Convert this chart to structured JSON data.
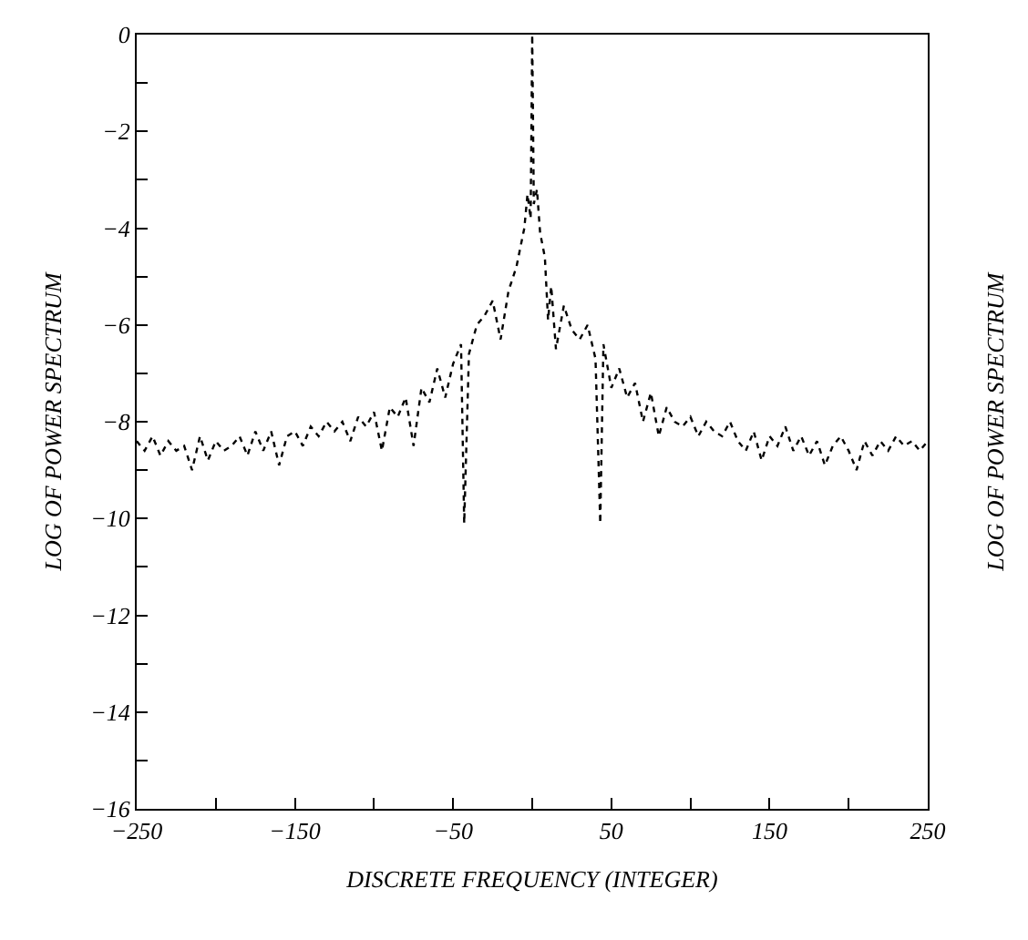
{
  "chart_data": {
    "type": "line",
    "xlabel": "DISCRETE FREQUENCY (INTEGER)",
    "ylabel": "LOG OF POWER SPECTRUM",
    "annotations": [
      "LOG OF POWER SPECTRUM"
    ],
    "x": [
      -250,
      -245,
      -240,
      -235,
      -230,
      -225,
      -220,
      -215,
      -210,
      -205,
      -200,
      -195,
      -190,
      -185,
      -180,
      -175,
      -170,
      -165,
      -160,
      -155,
      -150,
      -145,
      -140,
      -135,
      -130,
      -125,
      -120,
      -115,
      -110,
      -105,
      -100,
      -95,
      -90,
      -85,
      -80,
      -75,
      -70,
      -65,
      -60,
      -55,
      -50,
      -45,
      -43,
      -40,
      -35,
      -30,
      -25,
      -20,
      -15,
      -10,
      -5,
      -3,
      -1,
      0,
      1,
      3,
      5,
      8,
      10,
      12,
      15,
      20,
      25,
      30,
      35,
      40,
      43,
      45,
      50,
      55,
      60,
      65,
      70,
      75,
      80,
      85,
      90,
      95,
      100,
      105,
      110,
      115,
      120,
      125,
      130,
      135,
      140,
      145,
      150,
      155,
      160,
      165,
      170,
      175,
      180,
      185,
      190,
      195,
      200,
      205,
      210,
      215,
      220,
      225,
      230,
      235,
      240,
      245,
      250
    ],
    "series": [
      {
        "color": "#000000",
        "values": [
          -8.4,
          -8.6,
          -8.3,
          -8.7,
          -8.4,
          -8.6,
          -8.5,
          -9.0,
          -8.3,
          -8.8,
          -8.4,
          -8.6,
          -8.5,
          -8.3,
          -8.7,
          -8.2,
          -8.6,
          -8.2,
          -8.9,
          -8.3,
          -8.2,
          -8.5,
          -8.1,
          -8.3,
          -8.0,
          -8.2,
          -8.0,
          -8.4,
          -7.9,
          -8.1,
          -7.8,
          -8.6,
          -7.7,
          -7.9,
          -7.5,
          -8.5,
          -7.3,
          -7.6,
          -6.9,
          -7.5,
          -6.8,
          -6.4,
          -10.1,
          -6.6,
          -6.0,
          -5.8,
          -5.5,
          -6.3,
          -5.3,
          -4.8,
          -4.0,
          -3.3,
          -3.8,
          0,
          -3.5,
          -3.2,
          -4.1,
          -4.6,
          -5.9,
          -5.2,
          -6.5,
          -5.6,
          -6.1,
          -6.3,
          -6.0,
          -6.7,
          -10.1,
          -6.4,
          -7.3,
          -6.9,
          -7.5,
          -7.2,
          -8.0,
          -7.4,
          -8.3,
          -7.7,
          -8.0,
          -8.1,
          -7.9,
          -8.3,
          -8.0,
          -8.2,
          -8.3,
          -8.0,
          -8.4,
          -8.6,
          -8.2,
          -8.8,
          -8.3,
          -8.5,
          -8.1,
          -8.6,
          -8.3,
          -8.7,
          -8.4,
          -8.9,
          -8.5,
          -8.3,
          -8.6,
          -9.0,
          -8.4,
          -8.7,
          -8.4,
          -8.6,
          -8.3,
          -8.5,
          -8.4,
          -8.6,
          -8.4
        ]
      }
    ],
    "line_style": "dotted",
    "marker": "none",
    "xlim": [
      -250,
      250
    ],
    "xticks": [
      -250,
      {
        "value": -200,
        "label": null
      },
      -150,
      {
        "value": -100,
        "label": null
      },
      -50,
      {
        "value": 0,
        "label": null
      },
      50,
      {
        "value": 100,
        "label": null
      },
      150,
      {
        "value": 200,
        "label": null
      },
      250
    ],
    "ylim": [
      -16,
      0
    ],
    "yticks": [
      -16,
      {
        "value": -15,
        "label": null
      },
      -14,
      {
        "value": -13,
        "label": null
      },
      -12,
      {
        "value": -11,
        "label": null
      },
      -10,
      {
        "value": -9,
        "label": null
      },
      -8,
      {
        "value": -7,
        "label": null
      },
      -6,
      {
        "value": -5,
        "label": null
      },
      -4,
      {
        "value": -3,
        "label": null
      },
      -2,
      {
        "value": -1,
        "label": null
      },
      0
    ]
  }
}
